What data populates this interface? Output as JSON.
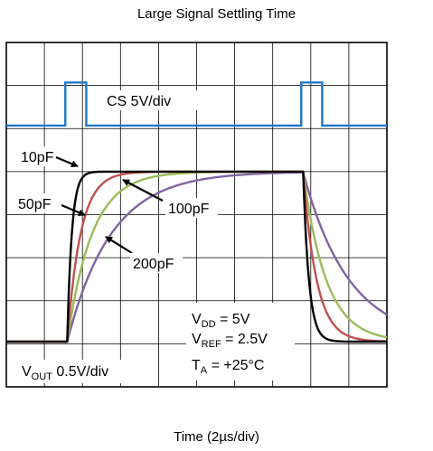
{
  "chart_data": {
    "type": "line",
    "title": "Large Signal Settling Time",
    "xlabel": "Time (2µs/div)",
    "x_divisions": 10,
    "y_divisions": 8,
    "grid": true,
    "cs_trace": {
      "label": "CS 5V/div",
      "color": "#1f77c8",
      "high_intervals_div": [
        [
          1.55,
          2.1
        ],
        [
          7.75,
          8.3
        ]
      ]
    },
    "vout_label": {
      "main": "V",
      "sub": "OUT",
      "rest": " 0.5V/div"
    },
    "annotations": [
      {
        "main": "V",
        "sub": "DD",
        "rest": " = 5V"
      },
      {
        "main": "V",
        "sub": "REF",
        "rest": " = 2.5V"
      },
      {
        "main": "T",
        "sub": "A",
        "rest": " = +25°C"
      }
    ],
    "edges_div": {
      "rise_start": 1.6,
      "fall_start": 7.8,
      "low_level": 6.95,
      "high_level": 3.0
    },
    "series": [
      {
        "name": "10pF",
        "color": "#000000",
        "rise_tau_div": 0.12,
        "fall_tau_div": 0.15
      },
      {
        "name": "50pF",
        "color": "#c0504d",
        "rise_tau_div": 0.35,
        "fall_tau_div": 0.35
      },
      {
        "name": "100pF",
        "color": "#9bbb59",
        "rise_tau_div": 0.65,
        "fall_tau_div": 0.6
      },
      {
        "name": "200pF",
        "color": "#8064a2",
        "rise_tau_div": 1.15,
        "fall_tau_div": 1.2
      }
    ]
  }
}
